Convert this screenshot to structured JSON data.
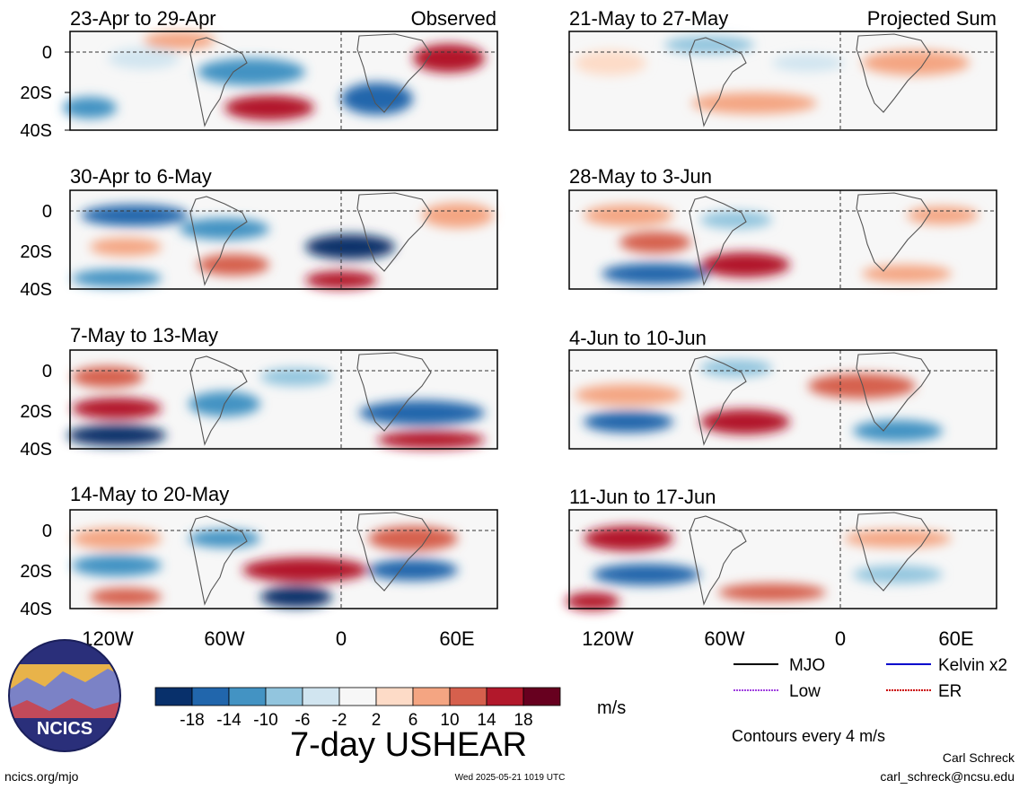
{
  "panels": [
    {
      "column": "left",
      "row": 0,
      "period": "23-Apr to 29-Apr",
      "tag": "Observed"
    },
    {
      "column": "left",
      "row": 1,
      "period": "30-Apr to 6-May",
      "tag": ""
    },
    {
      "column": "left",
      "row": 2,
      "period": "7-May to 13-May",
      "tag": ""
    },
    {
      "column": "left",
      "row": 3,
      "period": "14-May to 20-May",
      "tag": ""
    },
    {
      "column": "right",
      "row": 0,
      "period": "21-May to 27-May",
      "tag": "Projected Sum"
    },
    {
      "column": "right",
      "row": 1,
      "period": "28-May to 3-Jun",
      "tag": ""
    },
    {
      "column": "right",
      "row": 2,
      "period": "4-Jun to 10-Jun",
      "tag": ""
    },
    {
      "column": "right",
      "row": 3,
      "period": "11-Jun to 17-Jun",
      "tag": ""
    }
  ],
  "axes": {
    "lat_labels": [
      "0",
      "20S",
      "40S"
    ],
    "lon_labels": [
      "120W",
      "60W",
      "0",
      "60E"
    ]
  },
  "colorbar": {
    "tick_labels": [
      "-18",
      "-14",
      "-10",
      "-6",
      "-2",
      "2",
      "6",
      "10",
      "14",
      "18"
    ],
    "colors": [
      "#08306b",
      "#2166ac",
      "#4393c3",
      "#92c5de",
      "#d1e5f0",
      "#f7f7f7",
      "#fddbc7",
      "#f4a582",
      "#d6604d",
      "#b2182b",
      "#67001f"
    ],
    "units": "m/s"
  },
  "legend": {
    "items": [
      {
        "label": "MJO",
        "color": "#000000"
      },
      {
        "label": "Kelvin x2",
        "color": "#0000cc"
      },
      {
        "label": "Low",
        "color": "#a040e0"
      },
      {
        "label": "ER",
        "color": "#cc0000"
      }
    ],
    "contour_note": "Contours every 4 m/s"
  },
  "title": "7-day USHEAR",
  "logo_text": "NCICS",
  "footer": {
    "left": "ncics.org/mjo",
    "center": "Wed 2025-05-21 1019 UTC",
    "right_name": "Carl Schreck",
    "right_email": "carl_schreck@ncsu.edu"
  }
}
